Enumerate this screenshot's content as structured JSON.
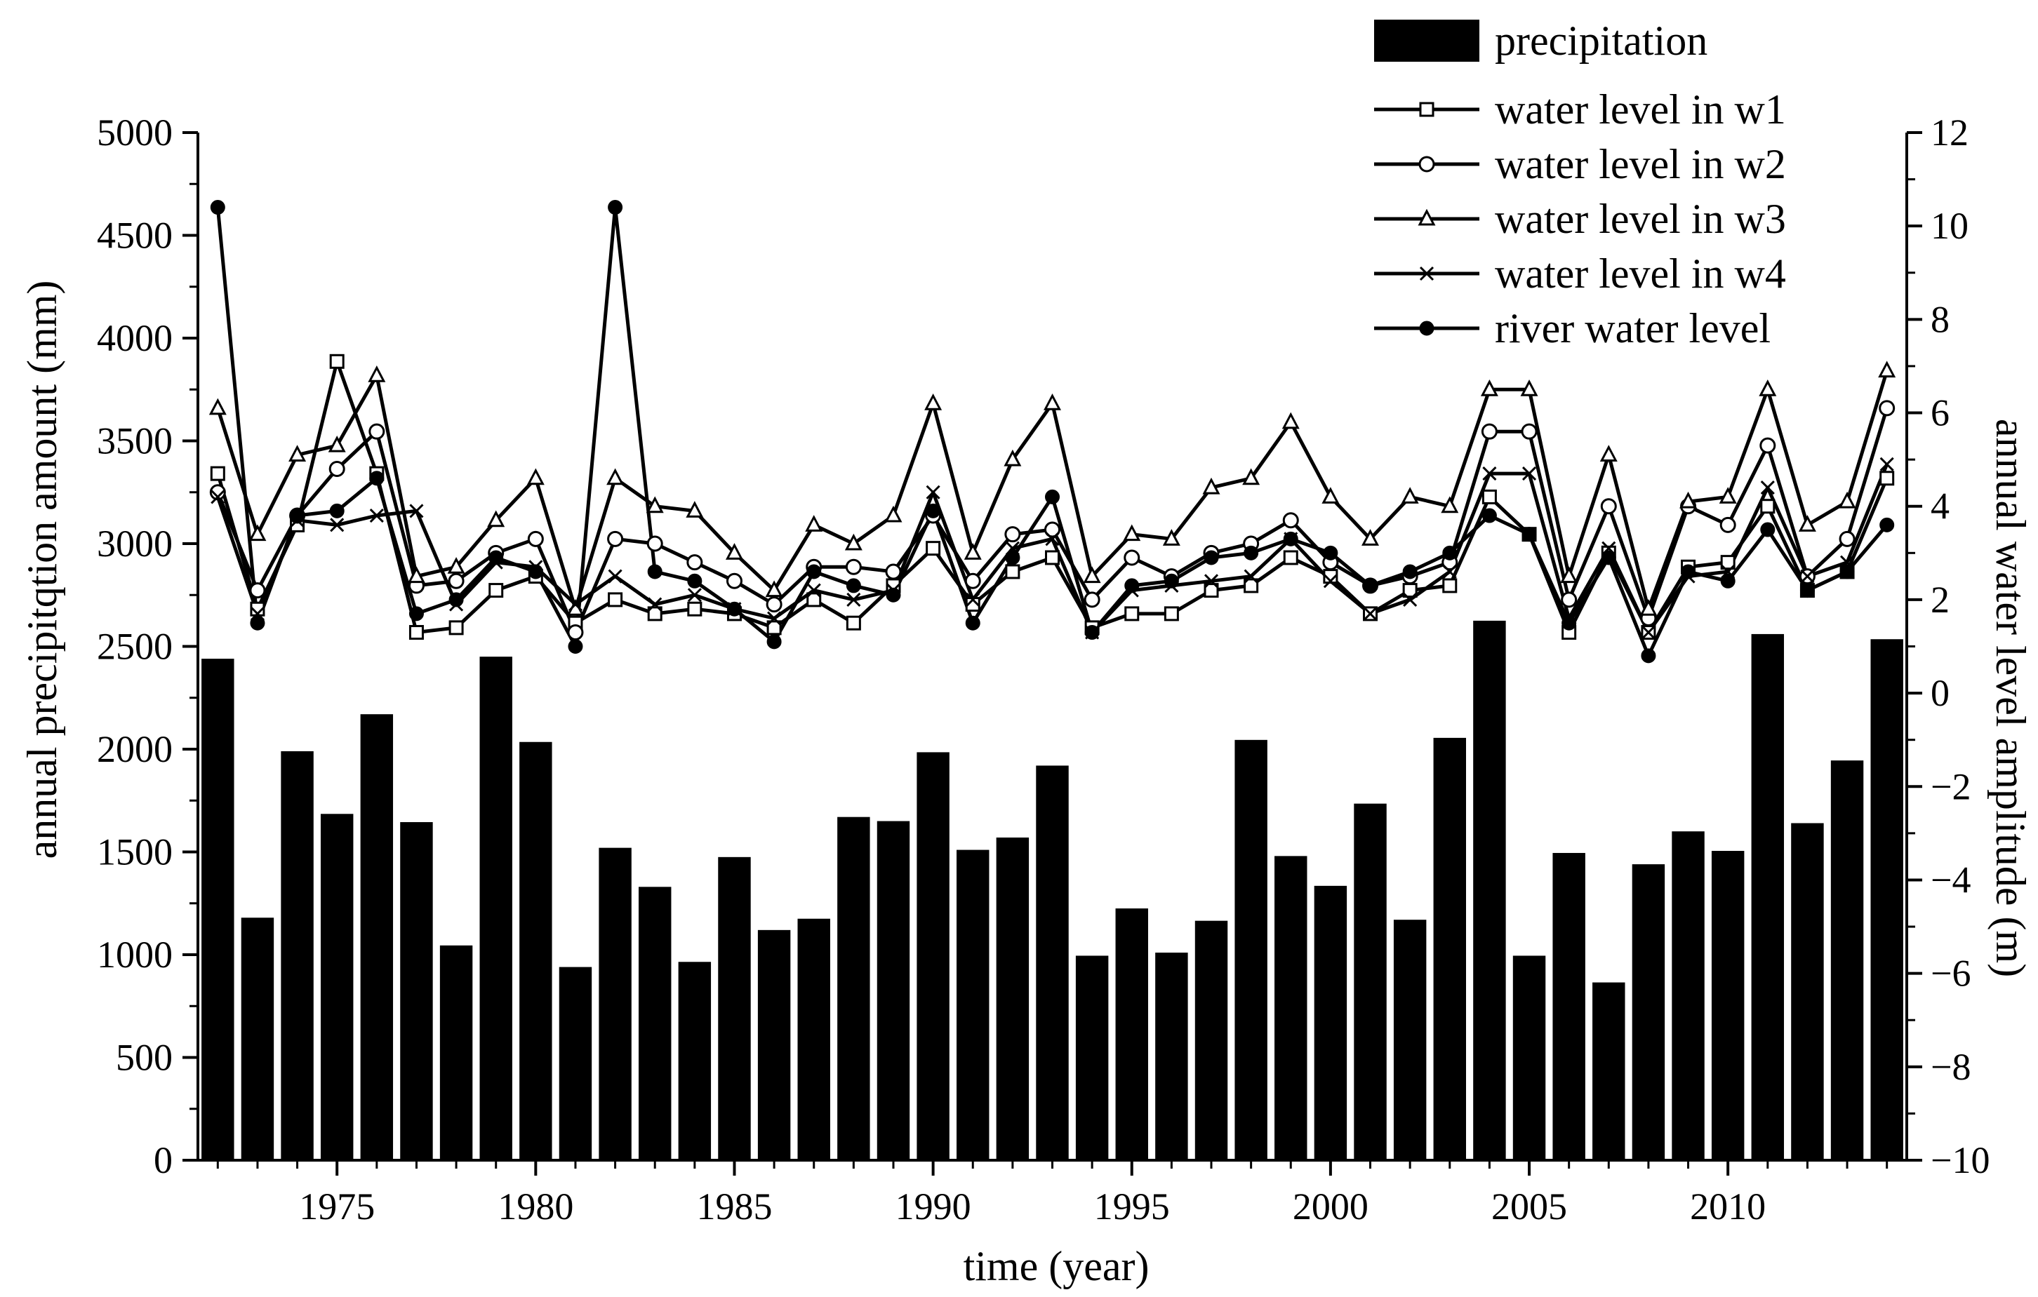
{
  "chart_data": {
    "type": "bar+line",
    "title": "",
    "xlabel": "time (year)",
    "ylabel": "annual precipitqtion amount (mm)",
    "y2label": "annual water level amplitude (m)",
    "xlim": [
      1971.5,
      2014.5
    ],
    "ylim": [
      0,
      5000
    ],
    "y2lim": [
      -10,
      12
    ],
    "x_ticks": [
      1975,
      1980,
      1985,
      1990,
      1995,
      2000,
      2005,
      2010
    ],
    "y_ticks": [
      0,
      500,
      1000,
      1500,
      2000,
      2500,
      3000,
      3500,
      4000,
      4500,
      5000
    ],
    "y2_ticks": [
      -10,
      -8,
      -6,
      -4,
      -2,
      0,
      2,
      4,
      6,
      8,
      10,
      12
    ],
    "y2_tick_labels": [
      "−10",
      "−8",
      "−6",
      "−4",
      "−2",
      "0",
      "2",
      "4",
      "6",
      "8",
      "10",
      "12"
    ],
    "years": [
      1972,
      1973,
      1974,
      1975,
      1976,
      1977,
      1978,
      1979,
      1980,
      1981,
      1982,
      1983,
      1984,
      1985,
      1986,
      1987,
      1988,
      1989,
      1990,
      1991,
      1992,
      1993,
      1994,
      1995,
      1996,
      1997,
      1998,
      1999,
      2000,
      2001,
      2002,
      2003,
      2004,
      2005,
      2006,
      2007,
      2008,
      2009,
      2010,
      2011,
      2012,
      2013,
      2014
    ],
    "bars": {
      "name": "precipitation",
      "axis": "left",
      "values": [
        2440,
        1180,
        1990,
        1685,
        2170,
        1645,
        1045,
        2450,
        2035,
        940,
        1520,
        1330,
        965,
        1475,
        1120,
        1175,
        1670,
        1650,
        1985,
        1510,
        1570,
        1920,
        995,
        1225,
        1010,
        1165,
        2045,
        1480,
        1335,
        1735,
        1170,
        2055,
        2625,
        995,
        1495,
        865,
        1440,
        1600,
        1505,
        2560,
        1640,
        1945,
        2535
      ]
    },
    "series": [
      {
        "name": "water level in w1",
        "marker": "square",
        "axis": "right",
        "values": [
          4.7,
          1.8,
          3.6,
          7.1,
          4.7,
          1.3,
          1.4,
          2.2,
          2.5,
          1.5,
          2.0,
          1.7,
          1.8,
          1.7,
          1.4,
          2.0,
          1.5,
          2.3,
          3.1,
          1.9,
          2.6,
          2.9,
          1.4,
          1.7,
          1.7,
          2.2,
          2.3,
          2.9,
          2.5,
          1.7,
          2.2,
          2.3,
          4.2,
          3.4,
          1.3,
          3.0,
          1.3,
          2.7,
          2.8,
          4.0,
          2.2,
          2.6,
          4.6
        ]
      },
      {
        "name": "water level in w2",
        "marker": "circle",
        "axis": "right",
        "values": [
          4.3,
          2.2,
          3.8,
          4.8,
          5.6,
          2.3,
          2.4,
          3.0,
          3.3,
          1.3,
          3.3,
          3.2,
          2.8,
          2.4,
          1.9,
          2.7,
          2.7,
          2.6,
          3.8,
          2.4,
          3.4,
          3.5,
          2.0,
          2.9,
          2.5,
          3.0,
          3.2,
          3.7,
          2.8,
          2.3,
          2.5,
          2.8,
          5.6,
          5.6,
          2.0,
          4.0,
          1.6,
          4.0,
          3.6,
          5.3,
          2.5,
          3.3,
          6.1
        ]
      },
      {
        "name": "water level in w3",
        "marker": "triangle",
        "axis": "right",
        "values": [
          6.1,
          3.4,
          5.1,
          5.3,
          6.8,
          2.5,
          2.7,
          3.7,
          4.6,
          1.8,
          4.6,
          4.0,
          3.9,
          3.0,
          2.2,
          3.6,
          3.2,
          3.8,
          6.2,
          3.0,
          5.0,
          6.2,
          2.5,
          3.4,
          3.3,
          4.4,
          4.6,
          5.8,
          4.2,
          3.3,
          4.2,
          4.0,
          6.5,
          6.5,
          2.5,
          5.1,
          1.8,
          4.1,
          4.2,
          6.5,
          3.6,
          4.1,
          6.9
        ]
      },
      {
        "name": "water level in w4",
        "marker": "x",
        "axis": "right",
        "values": [
          4.2,
          1.7,
          3.7,
          3.6,
          3.8,
          3.9,
          1.9,
          2.8,
          2.7,
          1.9,
          2.5,
          1.9,
          2.1,
          1.8,
          1.6,
          2.2,
          2.0,
          2.2,
          4.3,
          2.0,
          3.1,
          3.3,
          1.3,
          2.2,
          2.3,
          2.4,
          2.5,
          3.3,
          2.4,
          1.7,
          2.0,
          2.6,
          4.7,
          4.7,
          1.6,
          3.1,
          1.3,
          2.5,
          2.6,
          4.4,
          2.5,
          2.8,
          4.9
        ]
      },
      {
        "name": "river water level",
        "marker": "dot",
        "axis": "right",
        "values": [
          10.4,
          1.5,
          3.8,
          3.9,
          4.6,
          1.7,
          2.0,
          2.9,
          2.6,
          1.0,
          10.4,
          2.6,
          2.4,
          1.8,
          1.1,
          2.6,
          2.3,
          2.1,
          3.9,
          1.5,
          2.9,
          4.2,
          1.3,
          2.3,
          2.4,
          2.9,
          3.0,
          3.3,
          3.0,
          2.3,
          2.6,
          3.0,
          3.8,
          3.4,
          1.5,
          2.9,
          0.8,
          2.6,
          2.4,
          3.5,
          2.2,
          2.6,
          3.6
        ]
      }
    ],
    "legend_position": "top-right",
    "grid": false
  }
}
